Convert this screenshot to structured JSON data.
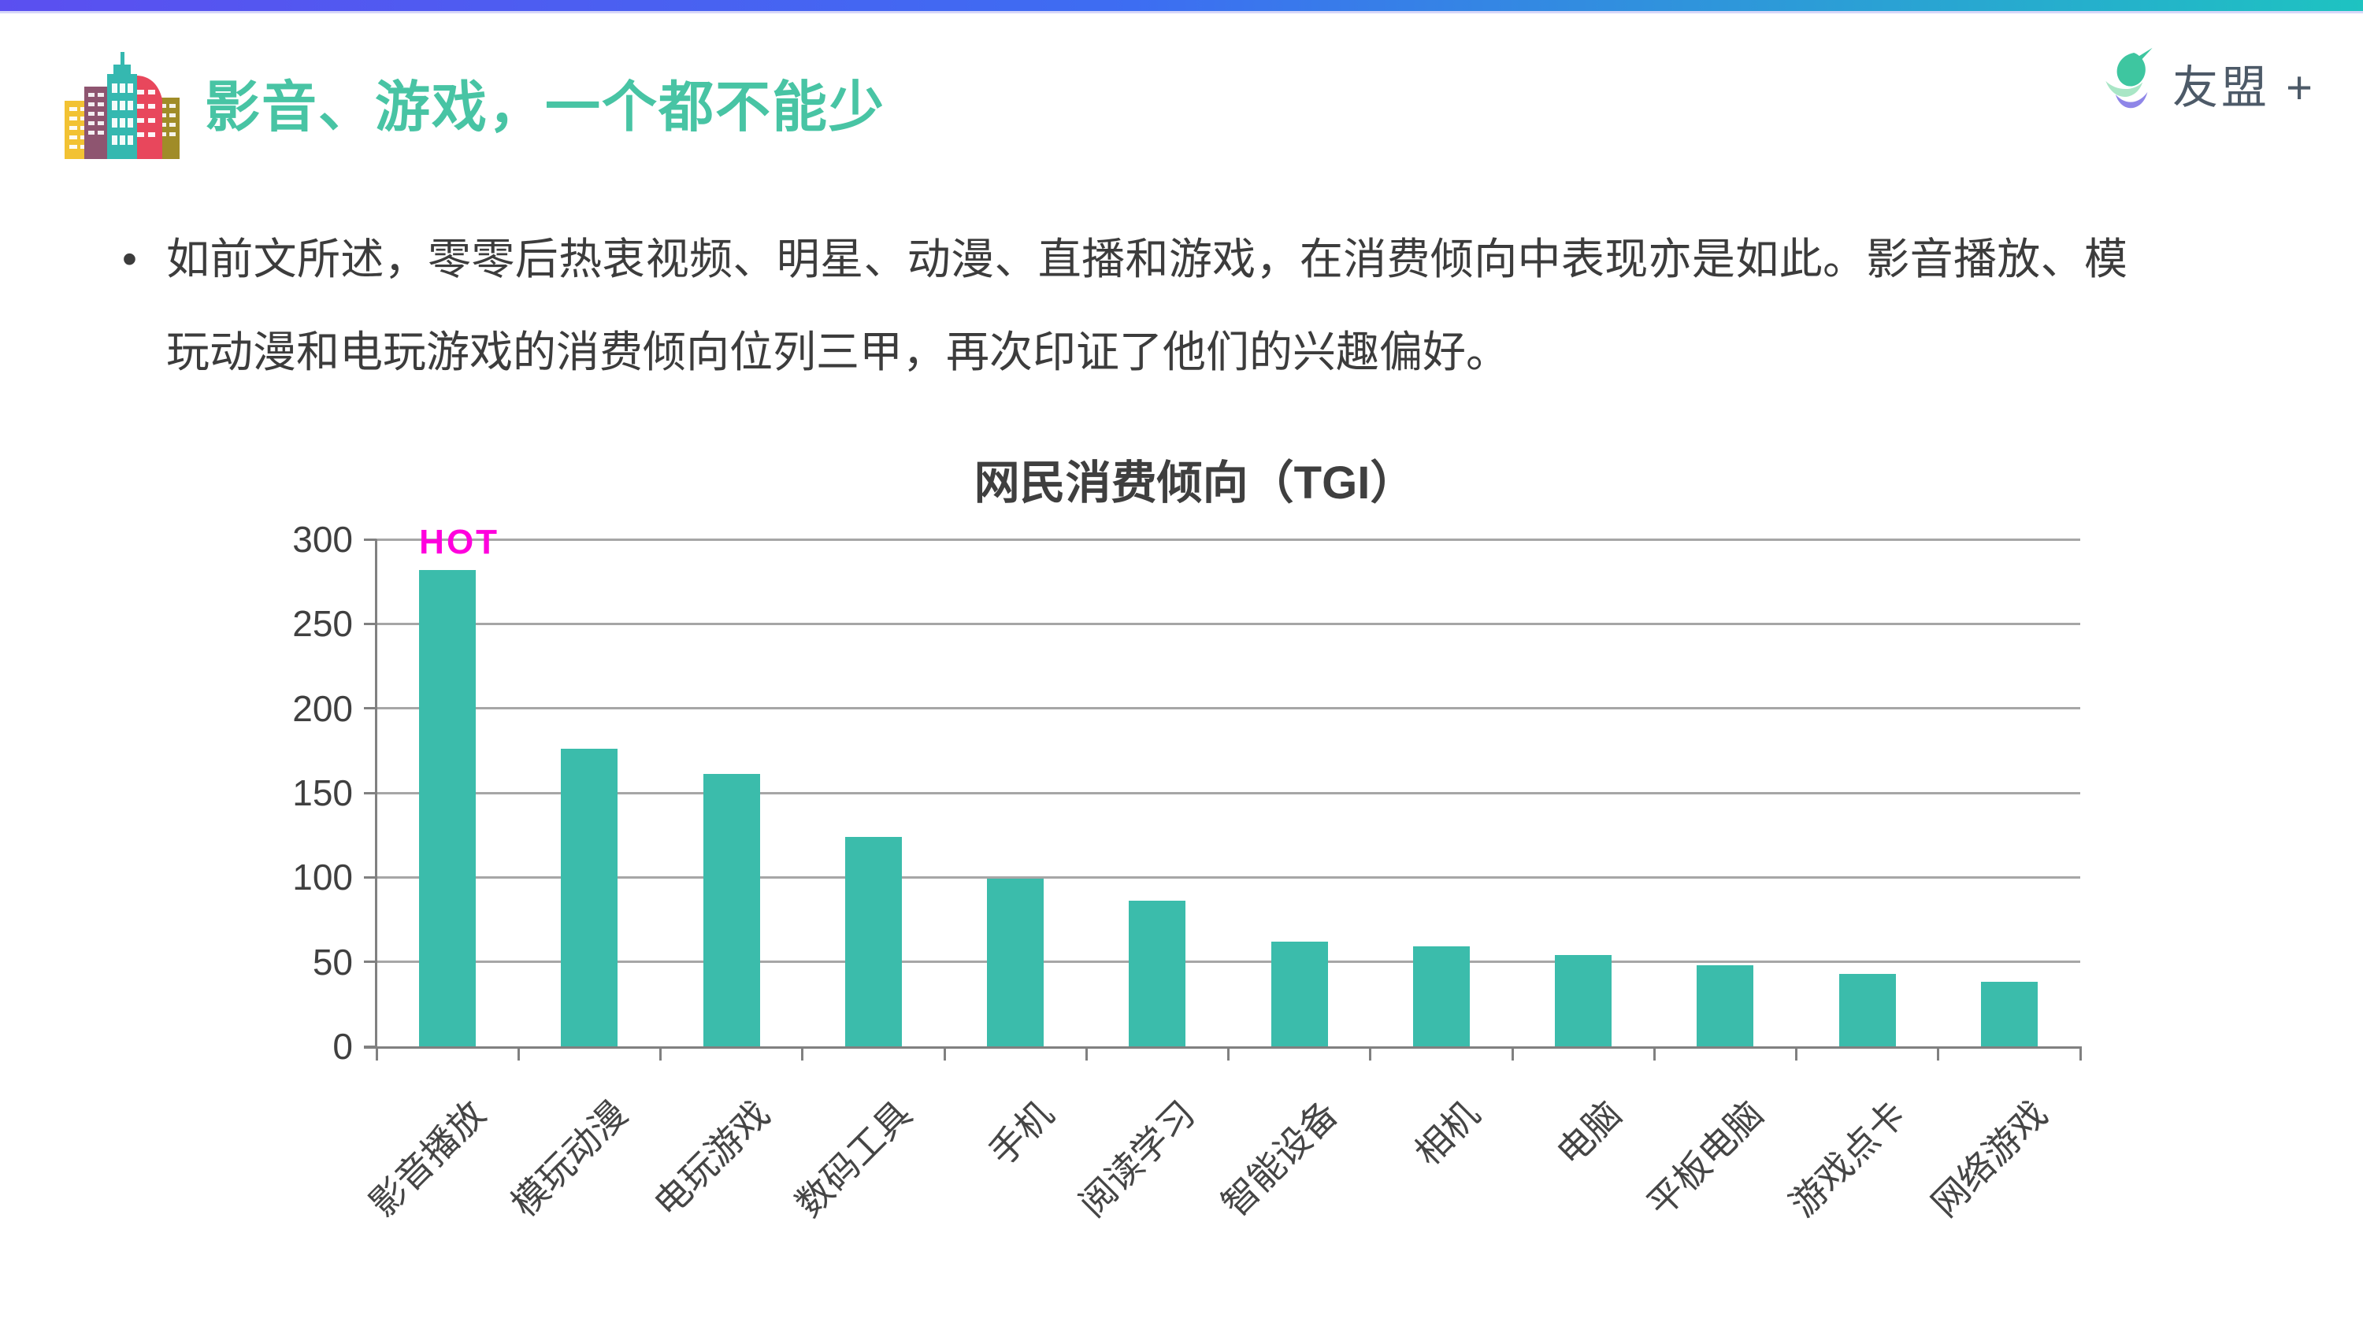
{
  "header": {
    "title": "影音、游戏，一个都不能少",
    "icon": "city-skyline-icon"
  },
  "logo": {
    "text": "友盟 +",
    "icon": "umeng-bird-icon"
  },
  "bullet": {
    "marker": "•",
    "text": "如前文所述，零零后热衷视频、明星、动漫、直播和游戏，在消费倾向中表现亦是如此。影音播放、模玩动漫和电玩游戏的消费倾向位列三甲，再次印证了他们的兴趣偏好。"
  },
  "chart_data": {
    "type": "bar",
    "title": "网民消费倾向（TGI）",
    "categories": [
      "影音播放",
      "模玩动漫",
      "电玩游戏",
      "数码工具",
      "手机",
      "阅读学习",
      "智能设备",
      "相机",
      "电脑",
      "平板电脑",
      "游戏点卡",
      "网络游戏"
    ],
    "values": [
      282,
      176,
      161,
      124,
      99,
      86,
      62,
      59,
      54,
      48,
      43,
      38
    ],
    "xlabel": "",
    "ylabel": "",
    "ylim": [
      0,
      300
    ],
    "yticks": [
      0,
      50,
      100,
      150,
      200,
      250,
      300
    ],
    "grid": true,
    "legend_position": "none",
    "bar_color": "#3bbcab",
    "annotation": {
      "text": "HOT",
      "category_index": 0,
      "color": "#ff00dd"
    }
  },
  "colors": {
    "topbar_gradient": [
      "#5b4ff0",
      "#3d6df2",
      "#1ec3c1"
    ],
    "title_accent": "#48c4a4",
    "body_text": "#3c3c3c",
    "chart_title_text": "#3f3f3f",
    "axis_line": "#808080",
    "gridline": "#a6a6a6",
    "tick_label": "#404040",
    "bar": "#3bbcab",
    "hot": "#ff00dd",
    "logo_text": "#4d5a68"
  }
}
